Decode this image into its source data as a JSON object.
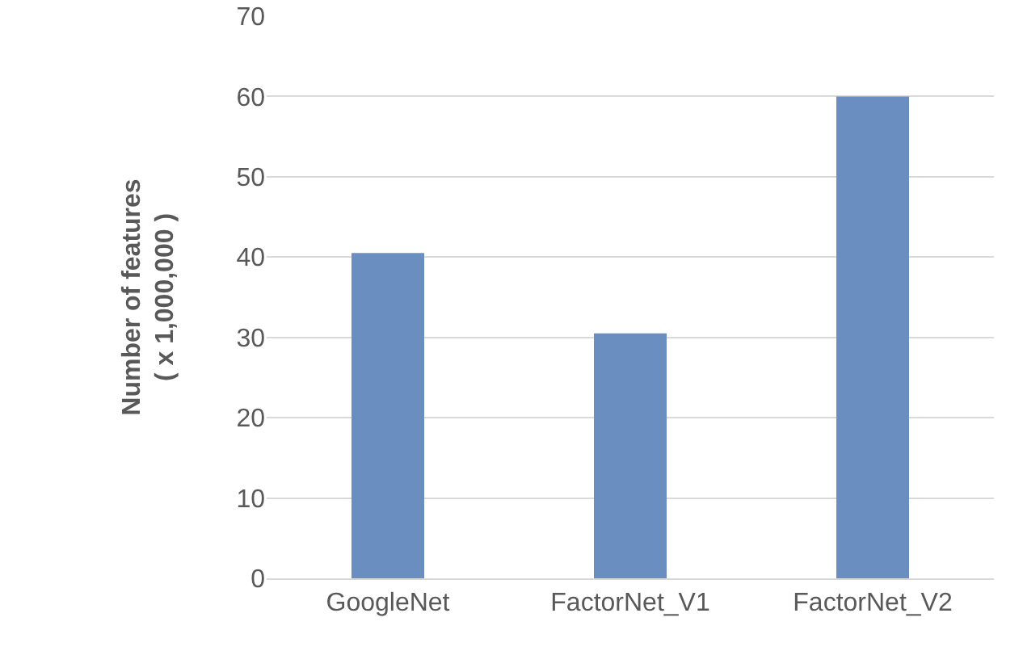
{
  "chart_data": {
    "type": "bar",
    "ylabel": "Number of features\n( x 1,000,000 )",
    "categories": [
      "GoogleNet",
      "FactorNet_V1",
      "FactorNet_V2"
    ],
    "values": [
      40.5,
      30.5,
      60
    ],
    "color": "#6a8ebf",
    "ylim": [
      0,
      70
    ],
    "yticks": [
      0,
      10,
      20,
      30,
      40,
      50,
      60,
      70
    ],
    "grid": "y"
  }
}
